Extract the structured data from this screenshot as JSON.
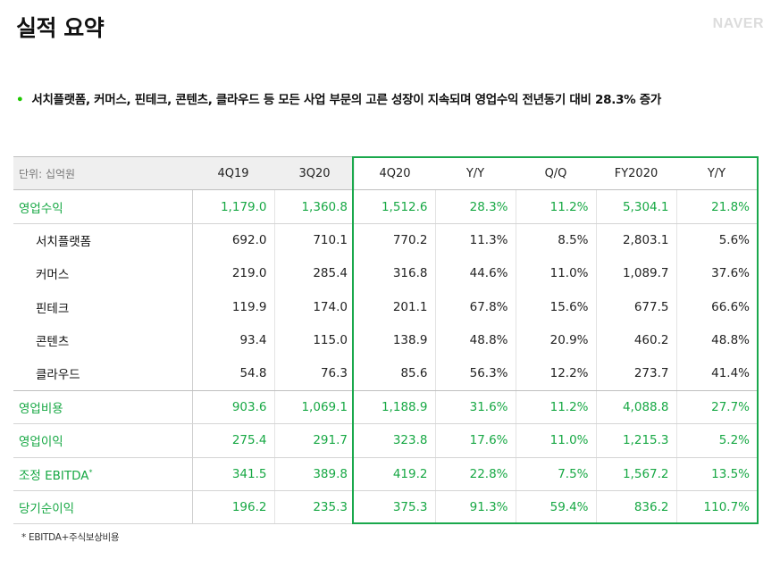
{
  "page": {
    "title": "실적 요약",
    "logo": "NAVER",
    "bullet_marker": "•",
    "bullet_text": "서치플랫폼, 커머스, 핀테크, 콘텐츠, 클라우드 등 모든 사업 부문의 고른 성장이 지속되며 영업수익 전년동기 대비 28.3% 증가",
    "footnote": "* EBITDA+주식보상비용"
  },
  "colors": {
    "accent_green": "#17a844",
    "box_green": "#1aa84c",
    "header_bg": "#efefef"
  },
  "table": {
    "unit_label": "단위: 십억원",
    "columns": [
      "4Q19",
      "3Q20",
      "4Q20",
      "Y/Y",
      "Q/Q",
      "FY2020",
      "Y/Y"
    ],
    "rows": [
      {
        "label": "영업수익",
        "type": "main",
        "values": [
          "1,179.0",
          "1,360.8",
          "1,512.6",
          "28.3%",
          "11.2%",
          "5,304.1",
          "21.8%"
        ]
      },
      {
        "label": "서치플랫폼",
        "type": "sub",
        "values": [
          "692.0",
          "710.1",
          "770.2",
          "11.3%",
          "8.5%",
          "2,803.1",
          "5.6%"
        ]
      },
      {
        "label": "커머스",
        "type": "sub",
        "values": [
          "219.0",
          "285.4",
          "316.8",
          "44.6%",
          "11.0%",
          "1,089.7",
          "37.6%"
        ]
      },
      {
        "label": "핀테크",
        "type": "sub",
        "values": [
          "119.9",
          "174.0",
          "201.1",
          "67.8%",
          "15.6%",
          "677.5",
          "66.6%"
        ]
      },
      {
        "label": "콘텐츠",
        "type": "sub",
        "values": [
          "93.4",
          "115.0",
          "138.9",
          "48.8%",
          "20.9%",
          "460.2",
          "48.8%"
        ]
      },
      {
        "label": "클라우드",
        "type": "sub",
        "values": [
          "54.8",
          "76.3",
          "85.6",
          "56.3%",
          "12.2%",
          "273.7",
          "41.4%"
        ]
      },
      {
        "label": "영업비용",
        "type": "main",
        "values": [
          "903.6",
          "1,069.1",
          "1,188.9",
          "31.6%",
          "11.2%",
          "4,088.8",
          "27.7%"
        ]
      },
      {
        "label": "영업이익",
        "type": "main",
        "values": [
          "275.4",
          "291.7",
          "323.8",
          "17.6%",
          "11.0%",
          "1,215.3",
          "5.2%"
        ]
      },
      {
        "label": "조정 EBITDA",
        "label_sup": "*",
        "type": "main",
        "values": [
          "341.5",
          "389.8",
          "419.2",
          "22.8%",
          "7.5%",
          "1,567.2",
          "13.5%"
        ]
      },
      {
        "label": "당기순이익",
        "type": "main",
        "values": [
          "196.2",
          "235.3",
          "375.3",
          "91.3%",
          "59.4%",
          "836.2",
          "110.7%"
        ]
      }
    ]
  }
}
